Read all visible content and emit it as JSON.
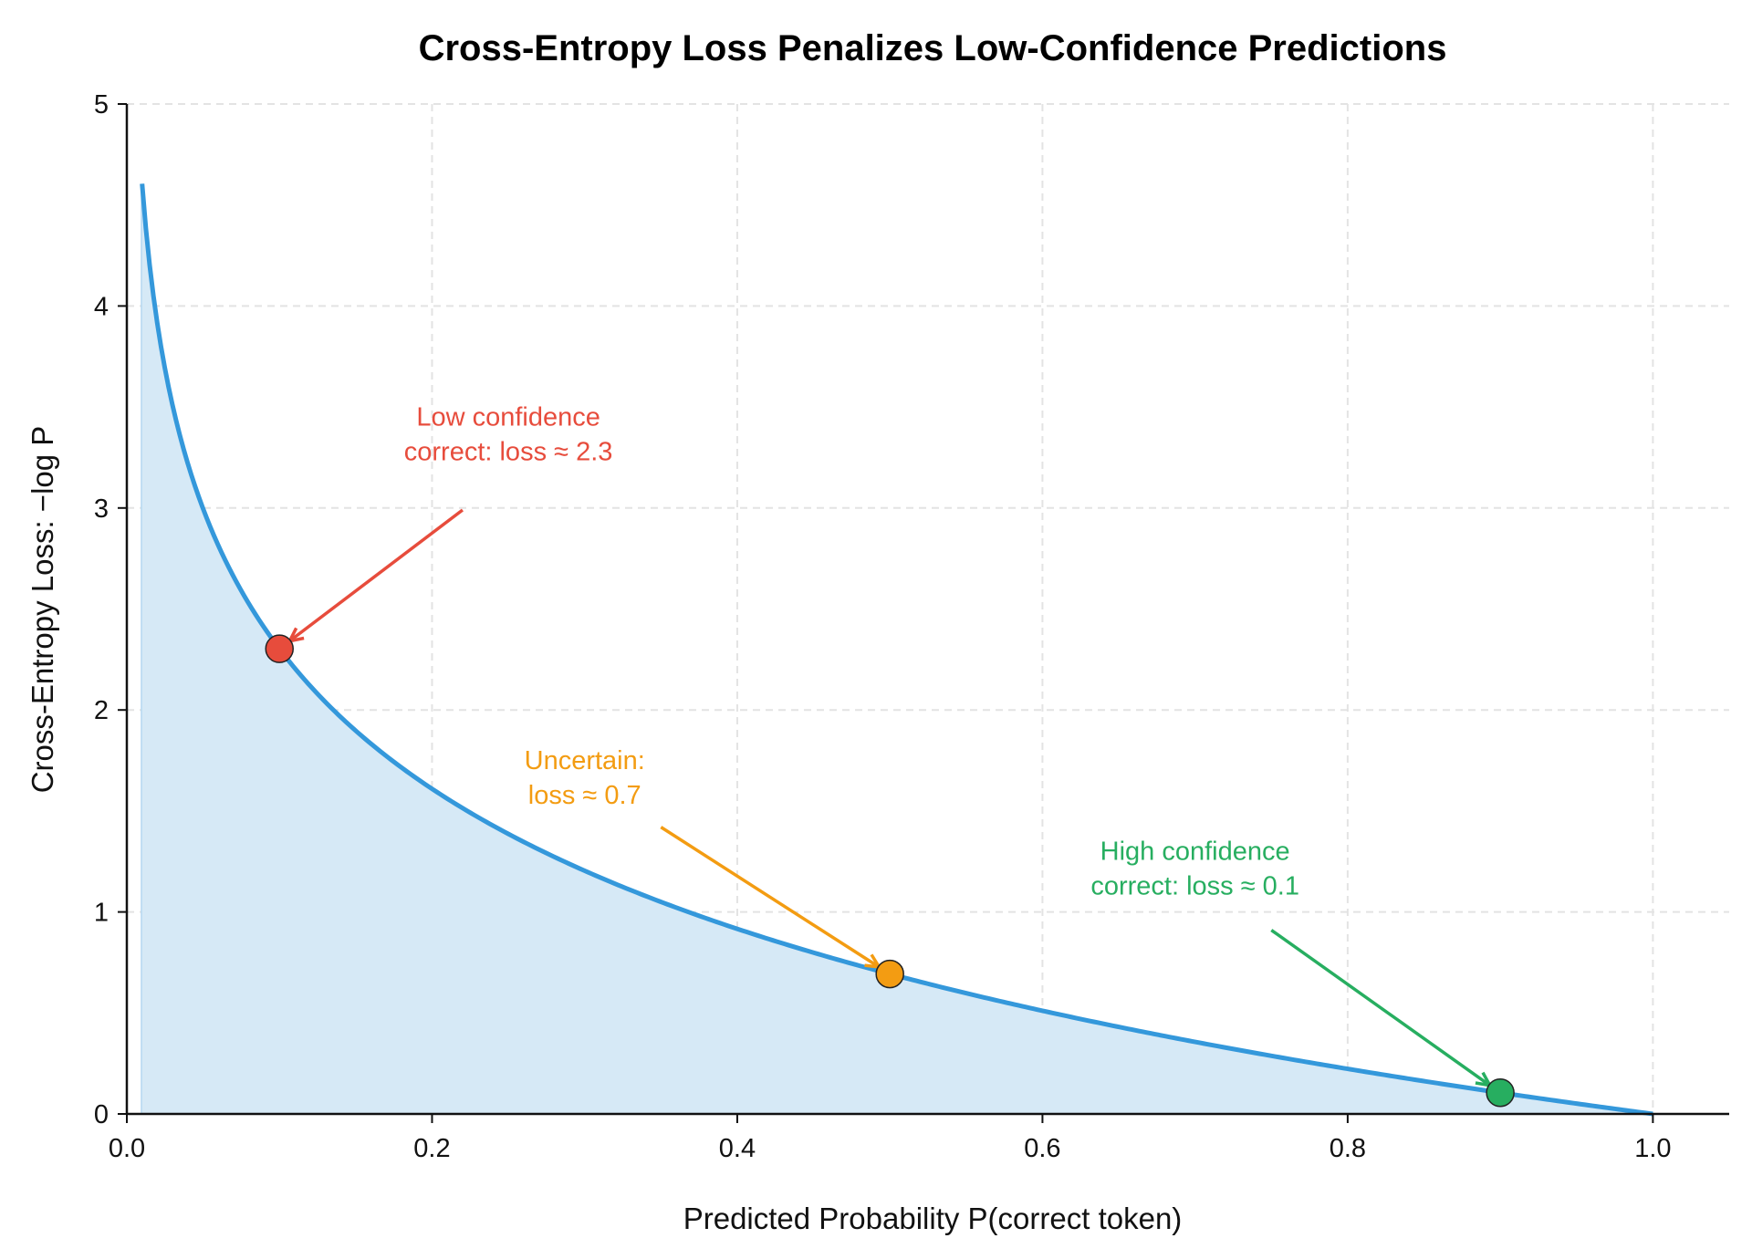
{
  "chart_data": {
    "type": "line",
    "title": "Cross-Entropy Loss Penalizes Low-Confidence Predictions",
    "xlabel": "Predicted Probability P(correct token)",
    "ylabel": "Cross-Entropy Loss: −log P",
    "xlim": [
      0,
      1.05
    ],
    "ylim": [
      0,
      5
    ],
    "grid": true,
    "xticks": [
      "0.0",
      "0.2",
      "0.4",
      "0.6",
      "0.8",
      "1.0"
    ],
    "yticks": [
      "0",
      "1",
      "2",
      "3",
      "4",
      "5"
    ],
    "series": [
      {
        "function": "-ln(p)",
        "x_range": [
          0.01,
          1.0
        ],
        "color": "#3498db",
        "fill": true,
        "fill_color": "#d6e9f6"
      }
    ],
    "points": [
      {
        "x": 0.1,
        "y": 2.303,
        "color": "#e74c3c"
      },
      {
        "x": 0.5,
        "y": 0.693,
        "color": "#f39c12"
      },
      {
        "x": 0.9,
        "y": 0.105,
        "color": "#27ae60"
      }
    ],
    "annotations": [
      {
        "lines": [
          "Low confidence",
          "correct: loss ≈ 2.3"
        ],
        "text_x": 0.25,
        "text_y": 3.3,
        "arrow_from": [
          0.22,
          2.99
        ],
        "arrow_to": [
          0.1,
          2.303
        ],
        "color": "#e74c3c"
      },
      {
        "lines": [
          "Uncertain:",
          "loss ≈ 0.7"
        ],
        "text_x": 0.3,
        "text_y": 1.6,
        "arrow_from": [
          0.35,
          1.42
        ],
        "arrow_to": [
          0.5,
          0.693
        ],
        "color": "#f39c12"
      },
      {
        "lines": [
          "High confidence",
          "correct: loss ≈ 0.1"
        ],
        "text_x": 0.7,
        "text_y": 1.15,
        "arrow_from": [
          0.75,
          0.91
        ],
        "arrow_to": [
          0.9,
          0.105
        ],
        "color": "#27ae60"
      }
    ]
  }
}
